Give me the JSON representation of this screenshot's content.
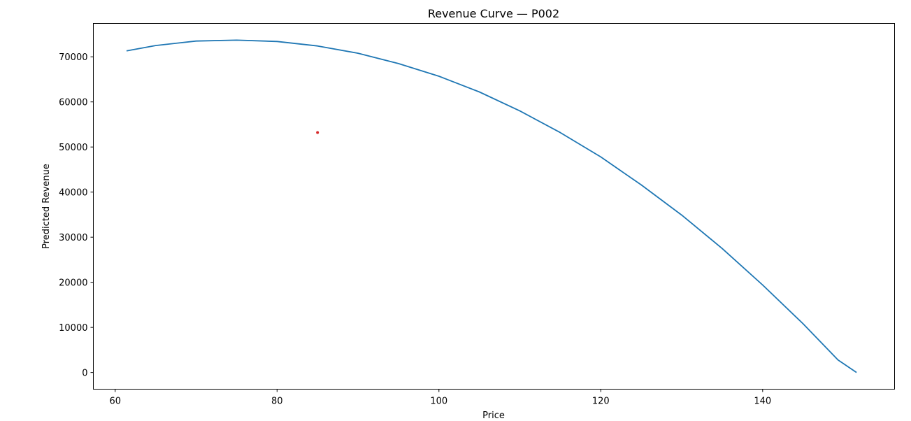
{
  "chart_data": {
    "type": "line",
    "title": "Revenue Curve — P002",
    "xlabel": "Price",
    "ylabel": "Predicted Revenue",
    "xlim": [
      57.3,
      156.3
    ],
    "ylim": [
      -3700,
      77400
    ],
    "xticks": [
      60,
      80,
      100,
      120,
      140
    ],
    "yticks": [
      0,
      10000,
      20000,
      30000,
      40000,
      50000,
      60000,
      70000
    ],
    "grid": false,
    "series": [
      {
        "color": "#1f77b4",
        "x": [
          61.4,
          65,
          70,
          75,
          80,
          85,
          90,
          95,
          100,
          105,
          110,
          115,
          120,
          125,
          130,
          135,
          140,
          145,
          149.3,
          151.6
        ],
        "y": [
          71300,
          72500,
          73500,
          73700,
          73400,
          72400,
          70800,
          68500,
          65700,
          62200,
          58000,
          53200,
          47800,
          41600,
          34900,
          27500,
          19400,
          10800,
          2800,
          0
        ]
      }
    ],
    "points": [
      {
        "color": "#d62728",
        "x": 85,
        "y": 53200
      }
    ]
  }
}
